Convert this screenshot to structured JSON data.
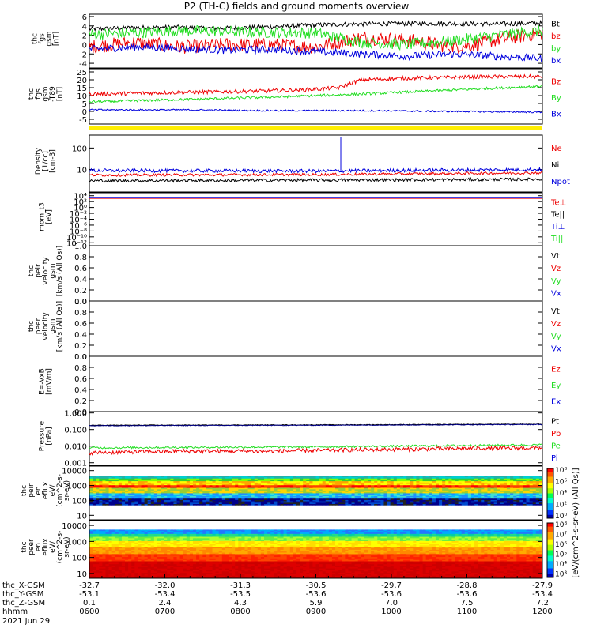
{
  "title": "P2 (TH-C) fields and ground moments overview",
  "colors": {
    "black": "#000000",
    "red": "#ee0000",
    "green": "#22dd22",
    "blue": "#0000dd",
    "yellow": "#ffee00",
    "darkblue": "#000088"
  },
  "chart_data": [
    {
      "id": "fgs",
      "type": "line",
      "ylabel_lines": [
        "thc",
        "fgs",
        "gsm",
        "[nT]"
      ],
      "ylim": [
        -5,
        6.5
      ],
      "yticks": [
        "6",
        "4",
        "2",
        "0",
        "-2",
        "-4"
      ],
      "ytick_values": [
        6,
        4,
        2,
        0,
        -2,
        -4
      ],
      "legend": [
        "Bt",
        "bz",
        "by",
        "bx"
      ],
      "legend_colors": [
        "black",
        "red",
        "green",
        "blue"
      ],
      "series": [
        {
          "name": "Bt",
          "color": "black",
          "x": [
            0,
            0.1,
            0.2,
            0.25,
            0.3,
            0.4,
            0.5,
            0.6,
            0.7,
            0.8,
            0.9,
            1
          ],
          "values": [
            3.3,
            3.6,
            3.7,
            3.5,
            3.5,
            3.8,
            4.2,
            4.4,
            4.5,
            4.5,
            4.4,
            4.6
          ],
          "noise": 0.5
        },
        {
          "name": "bz",
          "color": "red",
          "x": [
            0,
            0.1,
            0.2,
            0.3,
            0.4,
            0.5,
            0.6,
            0.7,
            0.8,
            0.85,
            0.9,
            1
          ],
          "values": [
            -0.5,
            0.5,
            -0.5,
            0,
            0,
            -0.5,
            1.5,
            1.0,
            -0.5,
            0,
            1,
            2.5
          ],
          "noise": 1.5
        },
        {
          "name": "by",
          "color": "green",
          "x": [
            0,
            0.1,
            0.2,
            0.3,
            0.4,
            0.5,
            0.6,
            0.7,
            0.8,
            0.9,
            1
          ],
          "values": [
            2.2,
            2.5,
            3.0,
            2.8,
            2.6,
            2.5,
            0.5,
            0,
            0.8,
            2.0,
            3.0
          ],
          "noise": 1.2
        },
        {
          "name": "bx",
          "color": "blue",
          "x": [
            0,
            0.1,
            0.2,
            0.3,
            0.4,
            0.5,
            0.6,
            0.7,
            0.8,
            0.9,
            1
          ],
          "values": [
            -1.0,
            -0.5,
            -0.8,
            -1.2,
            -1.0,
            -1.5,
            -2.0,
            -2.5,
            -2.0,
            -2.5,
            -3.0
          ],
          "noise": 0.8
        }
      ]
    },
    {
      "id": "fgs_t89",
      "type": "line",
      "ylabel_lines": [
        "thc",
        "fgs",
        "gsm",
        "-T89",
        "[nT]"
      ],
      "ylim": [
        -8,
        27
      ],
      "yticks": [
        "25",
        "20",
        "15",
        "10",
        "5",
        "0",
        "-5"
      ],
      "ytick_values": [
        25,
        20,
        15,
        10,
        5,
        0,
        -5
      ],
      "legend": [
        "Bz",
        "By",
        "Bx"
      ],
      "legend_colors": [
        "red",
        "green",
        "blue"
      ],
      "series": [
        {
          "name": "Bz",
          "color": "red",
          "x": [
            0,
            0.2,
            0.4,
            0.5,
            0.55,
            0.6,
            0.7,
            0.8,
            0.9,
            1
          ],
          "values": [
            11,
            12,
            13,
            14,
            15,
            20,
            21,
            21.5,
            22,
            22
          ],
          "noise": 1.2
        },
        {
          "name": "By",
          "color": "green",
          "x": [
            0,
            0.2,
            0.4,
            0.6,
            0.8,
            1
          ],
          "values": [
            6,
            7.5,
            9,
            11,
            13.5,
            16
          ],
          "noise": 0.8
        },
        {
          "name": "Bx",
          "color": "blue",
          "x": [
            0,
            0.2,
            0.4,
            0.6,
            0.8,
            1
          ],
          "values": [
            1,
            1,
            0.5,
            0.5,
            0,
            -0.5
          ],
          "noise": 0.5
        }
      ]
    },
    {
      "id": "density",
      "type": "line",
      "log": true,
      "ylabel_lines": [
        "Density",
        "[1/cc]",
        "[cm-3]"
      ],
      "ylim": [
        0.9,
        400
      ],
      "yticks": [
        "100",
        "10"
      ],
      "ytick_values": [
        100,
        10
      ],
      "legend": [
        "Ne",
        "Ni",
        "Npot"
      ],
      "legend_colors": [
        "red",
        "black",
        "blue"
      ],
      "series": [
        {
          "name": "Npot",
          "color": "blue",
          "x": [
            0,
            0.5,
            1
          ],
          "values": [
            9,
            8.5,
            10
          ],
          "noise": 0.08
        },
        {
          "name": "Ne",
          "color": "red",
          "x": [
            0,
            0.5,
            1
          ],
          "values": [
            5.5,
            5.8,
            7
          ],
          "noise": 0.06
        },
        {
          "name": "Ni",
          "color": "black",
          "x": [
            0,
            0.5,
            1
          ],
          "values": [
            3,
            3.2,
            3.5
          ],
          "noise": 0.07
        }
      ]
    },
    {
      "id": "temperature",
      "type": "line",
      "log": true,
      "ylabel_lines": [
        "mom_t3",
        "[eV]"
      ],
      "ylim": [
        1e-13,
        100000.0
      ],
      "yticks": [
        "10⁴",
        "10²",
        "10⁰",
        "10⁻²",
        "10⁻⁴",
        "10⁻⁶",
        "10⁻⁸",
        "10⁻¹⁰",
        "10⁻¹²"
      ],
      "ytick_values": [
        10000.0,
        100.0,
        1,
        0.01,
        0.0001,
        1e-06,
        1e-08,
        1e-10,
        1e-12
      ],
      "legend": [
        "Te⊥",
        "Te||",
        "Ti⊥",
        "Ti||"
      ],
      "legend_colors": [
        "red",
        "black",
        "blue",
        "green"
      ],
      "series": [
        {
          "name": "Te⊥",
          "color": "red",
          "x": [
            0,
            1
          ],
          "values": [
            1200,
            1200
          ],
          "noise": 0
        },
        {
          "name": "Ti⊥",
          "color": "blue",
          "x": [
            0,
            1
          ],
          "values": [
            3000,
            3000
          ],
          "noise": 0
        }
      ]
    },
    {
      "id": "peir_velocity",
      "type": "line",
      "ylabel_lines": [
        "thc",
        "peir",
        "velocity",
        "gsm",
        "[km/s (All Qs)]"
      ],
      "ylim": [
        0,
        1
      ],
      "yticks": [
        "1.0",
        "0.8",
        "0.6",
        "0.4",
        "0.2",
        "0.0"
      ],
      "ytick_values": [
        1,
        0.8,
        0.6,
        0.4,
        0.2,
        0
      ],
      "legend": [
        "Vt",
        "Vz",
        "Vy",
        "Vx"
      ],
      "legend_colors": [
        "black",
        "red",
        "green",
        "blue"
      ],
      "series": []
    },
    {
      "id": "peer_velocity",
      "type": "line",
      "ylabel_lines": [
        "thc",
        "peer",
        "velocity",
        "gsm",
        "[km/s (All Qs)]"
      ],
      "ylim": [
        0,
        1
      ],
      "yticks": [
        "1.0",
        "0.8",
        "0.6",
        "0.4",
        "0.2",
        "0.0"
      ],
      "ytick_values": [
        1,
        0.8,
        0.6,
        0.4,
        0.2,
        0
      ],
      "legend": [
        "Vt",
        "Vz",
        "Vy",
        "Vx"
      ],
      "legend_colors": [
        "black",
        "red",
        "green",
        "blue"
      ],
      "series": []
    },
    {
      "id": "efield",
      "type": "line",
      "ylabel_lines": [
        "E=-VxB",
        "[mV/m]"
      ],
      "ylim": [
        0,
        1
      ],
      "yticks": [
        "1.0",
        "0.8",
        "0.6",
        "0.4",
        "0.2",
        "0.0"
      ],
      "ytick_values": [
        1,
        0.8,
        0.6,
        0.4,
        0.2,
        0
      ],
      "legend": [
        "Ez",
        "Ey",
        "Ex"
      ],
      "legend_colors": [
        "red",
        "green",
        "blue"
      ],
      "series": []
    },
    {
      "id": "pressure",
      "type": "line",
      "log": true,
      "ylabel_lines": [
        "Pressure",
        "[nPa]"
      ],
      "ylim": [
        0.0007,
        1.2
      ],
      "yticks": [
        "1.000",
        "0.100",
        "0.010",
        "0.001"
      ],
      "ytick_values": [
        1,
        0.1,
        0.01,
        0.001
      ],
      "legend": [
        "Pt",
        "Pb",
        "Pe",
        "Pi"
      ],
      "legend_colors": [
        "black",
        "red",
        "green",
        "blue"
      ],
      "series": [
        {
          "name": "Pt",
          "color": "black",
          "x": [
            0,
            0.5,
            1
          ],
          "values": [
            0.18,
            0.19,
            0.21
          ],
          "noise": 0.02
        },
        {
          "name": "Pi",
          "color": "darkblue",
          "x": [
            0,
            0.5,
            1
          ],
          "values": [
            0.17,
            0.18,
            0.2
          ],
          "noise": 0.02
        },
        {
          "name": "Pe",
          "color": "green",
          "x": [
            0,
            0.5,
            1
          ],
          "values": [
            0.008,
            0.009,
            0.012
          ],
          "noise": 0.06
        },
        {
          "name": "Pb",
          "color": "red",
          "x": [
            0,
            0.2,
            0.4,
            0.6,
            0.8,
            1
          ],
          "values": [
            0.004,
            0.005,
            0.005,
            0.006,
            0.007,
            0.008
          ],
          "noise": 0.12
        }
      ]
    },
    {
      "id": "peir_spectrogram",
      "type": "heatmap",
      "log": true,
      "ylabel_lines": [
        "thc",
        "peir",
        "en",
        "eflux",
        "eV/",
        "(cm^2-s-",
        "sr-eV)"
      ],
      "ylim": [
        5,
        20000
      ],
      "yticks": [
        "10000",
        "1000",
        "100",
        "10"
      ],
      "ytick_values": [
        10000,
        1000,
        100,
        10
      ]
    },
    {
      "id": "peer_spectrogram",
      "type": "heatmap",
      "log": true,
      "ylabel_lines": [
        "thc",
        "peer",
        "en",
        "eflux",
        "eV/",
        "(cm^2-s-",
        "sr-eV)"
      ],
      "ylim": [
        5,
        20000
      ],
      "yticks": [
        "10000",
        "1000",
        "100",
        "10"
      ],
      "ytick_values": [
        10000,
        1000,
        100,
        10
      ]
    }
  ],
  "colorbar": {
    "label": "[eV/(cm^2-s-sr-eV) (All Qs)]",
    "ticks": [
      "10⁸",
      "10⁶",
      "10⁴",
      "10²",
      "10⁰"
    ],
    "ticks_lower": [
      "10⁸",
      "10⁷",
      "10⁶",
      "10⁵",
      "10⁴",
      "10³"
    ]
  },
  "xaxis": {
    "row_labels": [
      "thc_X-GSM",
      "thc_Y-GSM",
      "thc_Z-GSM",
      "hhmm",
      "2021 Jun 29"
    ],
    "x_gsm": [
      "-32.7",
      "-32.0",
      "-31.3",
      "-30.5",
      "-29.7",
      "-28.8",
      "-27.9"
    ],
    "y_gsm": [
      "-53.1",
      "-53.4",
      "-53.5",
      "-53.6",
      "-53.6",
      "-53.6",
      "-53.4"
    ],
    "z_gsm": [
      "0.1",
      "2.4",
      "4.3",
      "5.9",
      "7.0",
      "7.5",
      "7.2"
    ],
    "hhmm": [
      "0600",
      "0700",
      "0800",
      "0900",
      "1000",
      "1100",
      "1200"
    ]
  }
}
